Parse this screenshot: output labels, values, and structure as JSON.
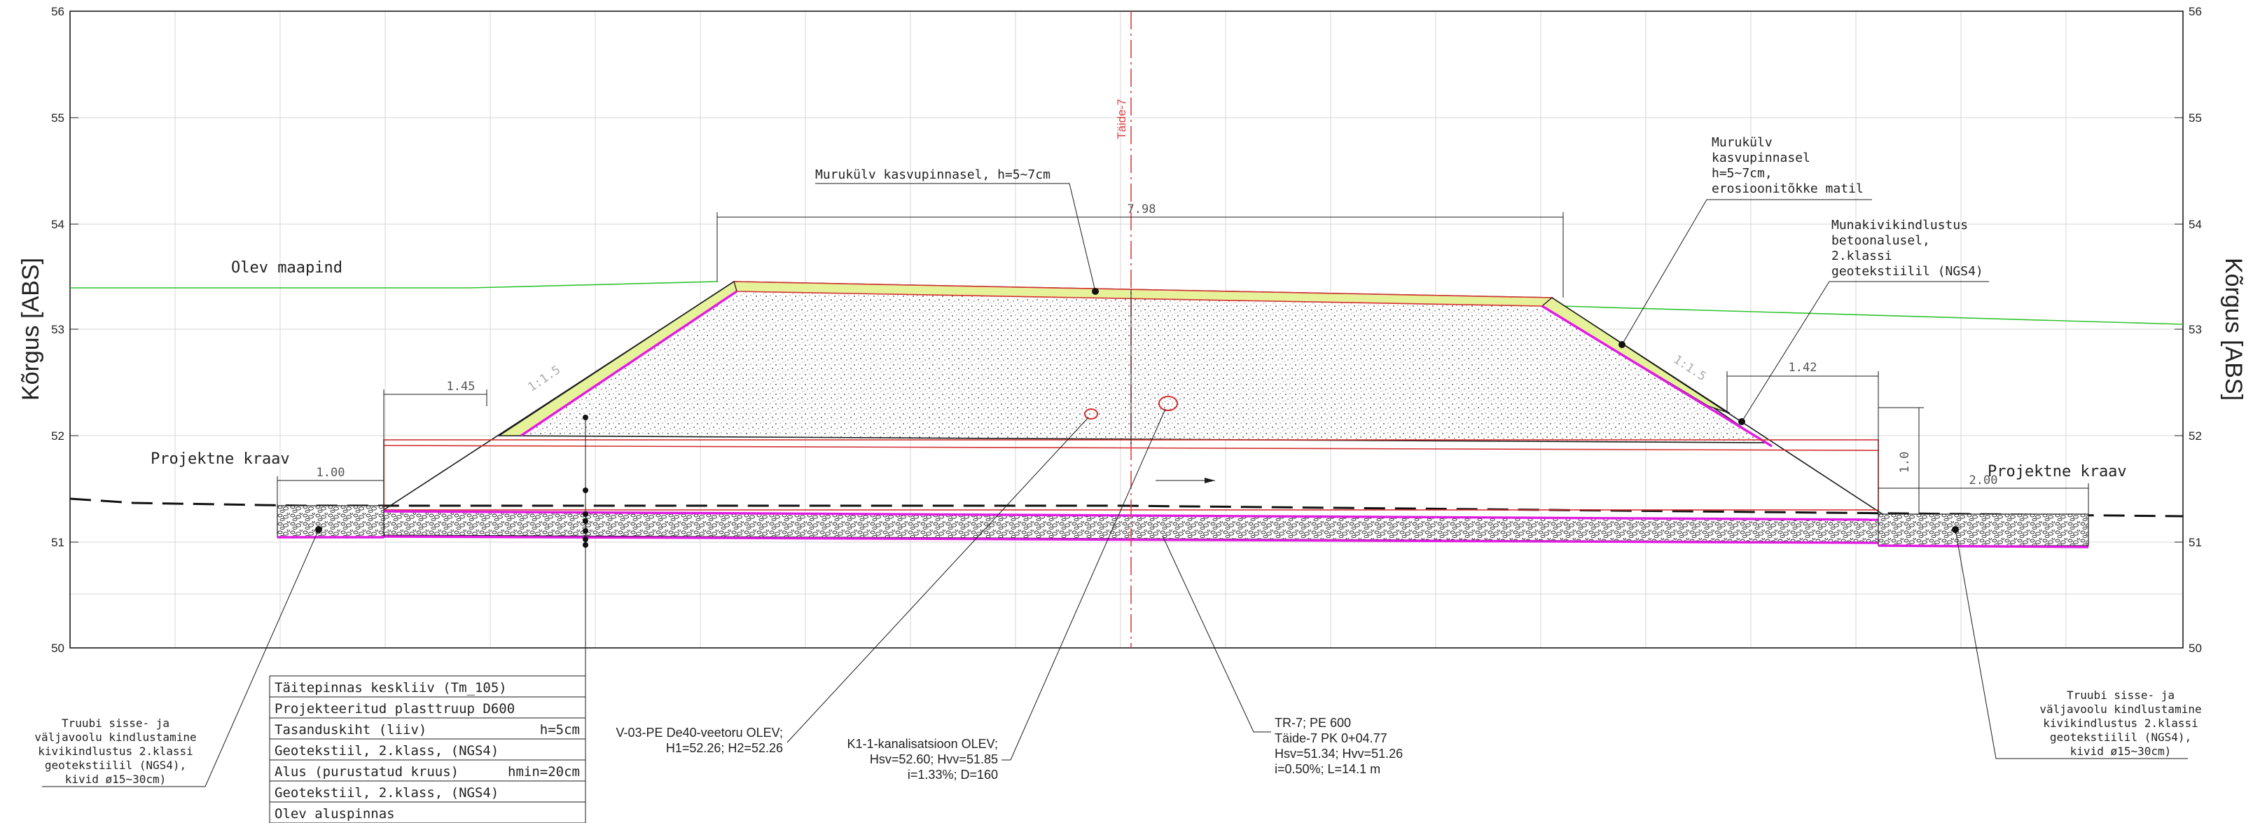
{
  "axis": {
    "label_left": "Kõrgus [ABS]",
    "label_right": "Kõrgus [ABS]",
    "ticks_left": [
      "56",
      "55",
      "54",
      "53",
      "52",
      "51",
      "50"
    ],
    "ticks_right": [
      "56",
      "55",
      "54",
      "53",
      "52",
      "51",
      "50"
    ]
  },
  "centerline": {
    "label": "Täide-7"
  },
  "labels": {
    "existing_ground": "Olev maapind",
    "ditch_left": "Projektne kraav",
    "ditch_right": "Projektne kraav",
    "grass_top": "Murukülv kasvupinnasel, h=5~7cm",
    "grass_slope": [
      "Murukülv",
      "kasvupinnasel",
      "h=5~7cm,",
      "erosioonitõkke matil"
    ],
    "stone_protection": [
      "Munakivikindlustus",
      "betoonalusel,",
      "2.klassi",
      "geotekstiilil (NGS4)"
    ],
    "culvert_protection_left": [
      "Truubi sisse- ja",
      "väljavoolu kindlustamine",
      "kivikindlustus 2.klassi",
      "geotekstiilil (NGS4),",
      "kivid ø15~30cm)"
    ],
    "culvert_protection_right": [
      "Truubi sisse- ja",
      "väljavoolu kindlustamine",
      "kivikindlustus 2.klassi",
      "geotekstiilil (NGS4),",
      "kivid ø15~30cm)"
    ]
  },
  "dimensions": {
    "top_width": "7.98",
    "left_berm": "1.45",
    "left_ditch": "1.00",
    "right_berm": "1.42",
    "right_ditch": "2.00",
    "right_height": "1.0",
    "slope_left": "1:1.5",
    "slope_right": "1:1.5"
  },
  "layer_table": {
    "rows": [
      {
        "name": "Täitepinnas keskliiv (Tm_105)",
        "value": ""
      },
      {
        "name": "Projekteeritud plasttruup D600",
        "value": ""
      },
      {
        "name": "Tasanduskiht (liiv)",
        "value": "h=5cm"
      },
      {
        "name": "Geotekstiil, 2.klass, (NGS4)",
        "value": ""
      },
      {
        "name": "Alus (purustatud kruus)",
        "value": "hmin=20cm"
      },
      {
        "name": "Geotekstiil, 2.klass, (NGS4)",
        "value": ""
      },
      {
        "name": "Olev aluspinnas",
        "value": ""
      }
    ]
  },
  "callouts": {
    "water_pipe": [
      "V-03-PE De40-veetoru OLEV;",
      "H1=52.26; H2=52.26"
    ],
    "sewer": [
      "K1-1-kanalisatsioon OLEV;",
      "Hsv=52.60; Hvv=51.85",
      "i=1.33%; D=160"
    ],
    "culvert": [
      "TR-7; PE 600",
      "Täide-7 PK 0+04.77",
      "Hsv=51.34; Hvv=51.26",
      "i=0.50%; L=14.1 m"
    ]
  },
  "colors": {
    "grid": "#d7d7d7",
    "ink": "#1a1a1a",
    "red": "#d43030",
    "magenta": "#e21be2",
    "green": "#2ec42e",
    "topsoil": "#e6f29a"
  }
}
